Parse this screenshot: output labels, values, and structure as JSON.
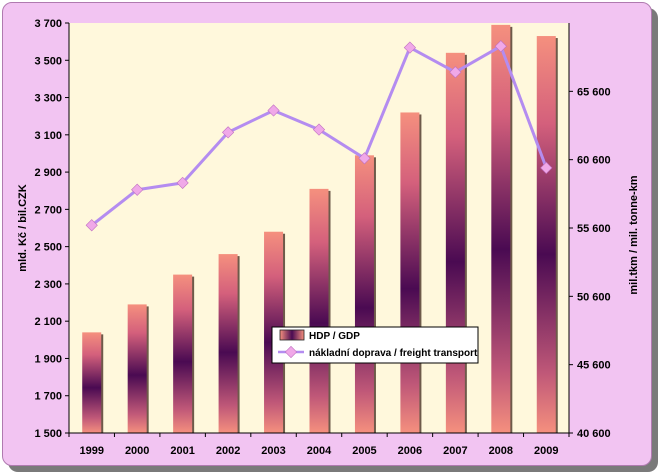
{
  "chart_data": {
    "type": "bar+line",
    "categories": [
      "1999",
      "2000",
      "2001",
      "2002",
      "2003",
      "2004",
      "2005",
      "2006",
      "2007",
      "2008",
      "2009"
    ],
    "series": [
      {
        "name": "HDP / GDP",
        "type": "bar",
        "axis": "left",
        "values": [
          2040,
          2190,
          2350,
          2460,
          2580,
          2810,
          2990,
          3220,
          3540,
          3690,
          3630
        ]
      },
      {
        "name": "nákladní doprava / freight transport",
        "type": "line",
        "axis": "right",
        "values": [
          55800,
          58400,
          58900,
          62600,
          64200,
          62800,
          60700,
          68800,
          67000,
          68900,
          60000
        ]
      }
    ],
    "ylabel": "mld. Kč / bil.CZK",
    "y2label": "mil.tkm / mil. tonne-km",
    "ylim": [
      1500,
      3700
    ],
    "y2lim": [
      40600,
      70600
    ],
    "yticks": [
      "1 500",
      "1 700",
      "1 900",
      "2 100",
      "2 300",
      "2 500",
      "2 700",
      "2 900",
      "3 100",
      "3 300",
      "3 500",
      "3 700"
    ],
    "y2ticks": [
      "40 600",
      "45 600",
      "50 600",
      "55 600",
      "60 600",
      "65 600"
    ],
    "legend_position": "center",
    "colors": {
      "bar_edge": "#f08878",
      "bar_mid": "#4a0a52",
      "line": "#b48cf0",
      "marker": "#f0a8e8",
      "plot_bg": "#fff8dc",
      "frame_bg": "#f2c4f2"
    }
  }
}
